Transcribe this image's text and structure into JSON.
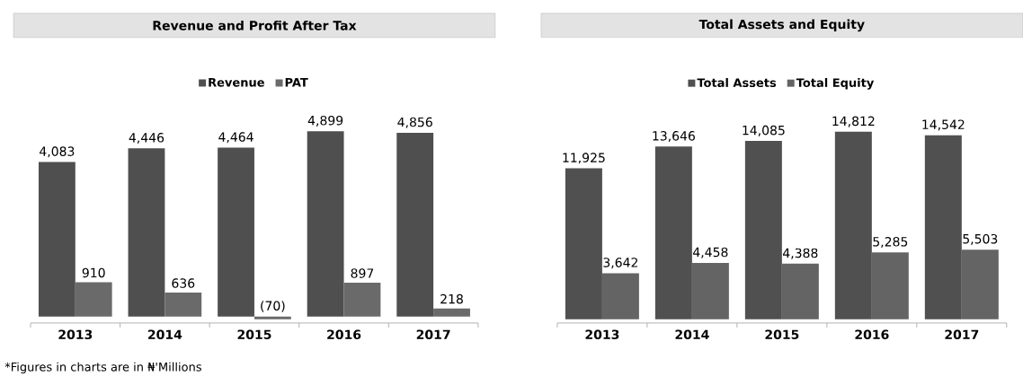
{
  "chart_data": [
    {
      "type": "bar",
      "title": "Revenue and Profit After Tax",
      "categories": [
        "2013",
        "2014",
        "2015",
        "2016",
        "2017"
      ],
      "series": [
        {
          "name": "Revenue",
          "color": "#4f4f4f",
          "values": [
            4083,
            4446,
            4464,
            4899,
            4856
          ],
          "value_labels": [
            "4,083",
            "4,446",
            "4,464",
            "4,899",
            "4,856"
          ]
        },
        {
          "name": "PAT",
          "color": "#6a6a6a",
          "values": [
            910,
            636,
            -70,
            897,
            218
          ],
          "value_labels": [
            "910",
            "636",
            "(70)",
            "897",
            "218"
          ]
        }
      ],
      "legend": "top",
      "tick_labels": "x",
      "annotations": [
        "*Figures in charts are in ₦'Millions"
      ]
    },
    {
      "type": "bar",
      "title": "Total Assets and Equity",
      "categories": [
        "2013",
        "2014",
        "2015",
        "2016",
        "2017"
      ],
      "series": [
        {
          "name": "Total Assets",
          "color": "#505050",
          "values": [
            11925,
            13646,
            14085,
            14812,
            14542
          ],
          "value_labels": [
            "11,925",
            "13,646",
            "14,085",
            "14,812",
            "14,542"
          ]
        },
        {
          "name": "Total Equity",
          "color": "#646464",
          "values": [
            3642,
            4458,
            4388,
            5285,
            5503
          ],
          "value_labels": [
            "3,642",
            "4,458",
            "4,388",
            "5,285",
            "5,503"
          ]
        }
      ],
      "legend": "top",
      "tick_labels": "x"
    }
  ]
}
